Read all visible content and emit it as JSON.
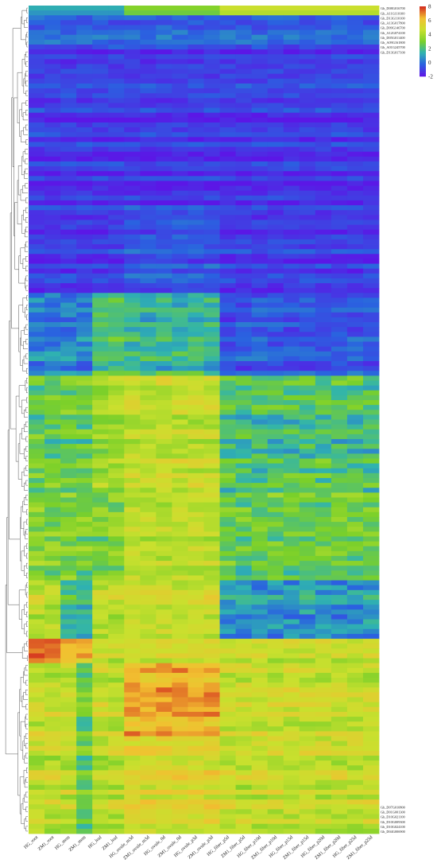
{
  "chart_data": {
    "type": "heatmap",
    "columns": [
      "HG_root",
      "ZM1_root",
      "HG_stem",
      "ZM1_stem",
      "HG_leaf",
      "ZM1_leaf",
      "HG_ovule_m3d",
      "ZM1_ovule_m3d",
      "HG_ovule_0d",
      "ZM1_ovule_0d",
      "HG_ovule_p3d",
      "ZM1_ovule_p3d",
      "HG_fiber_p5d",
      "ZM1_fiber_p5d",
      "HG_fiber_p10d",
      "ZM1_fiber_p10d",
      "HG_fiber_p15d",
      "ZM1_fiber_p15d",
      "HG_fiber_p20d",
      "ZM1_fiber_p20d",
      "HG_fiber_p25d",
      "ZM1_fiber_p25d"
    ],
    "rows_visible": [
      "Gh_D08G016700",
      "Gh_A11G110100",
      "Gh_D13G110100",
      "Gh_A13G017800",
      "Gh_D09G146700",
      "Gh_A12G074100",
      "Gh_D05G011400",
      "Gh_A09G161800",
      "Gh_A01G245700",
      "Gh_D13G017100"
    ],
    "rows_visible_bottom": [
      "Gh_D07G010800",
      "Gh_D01G001300",
      "Gh_D10G021100",
      "Gh_D10G009300",
      "Gh_D10G024100",
      "Gh_D04G006900"
    ],
    "row_count": 170,
    "color_scale": {
      "min": -2,
      "max": 8,
      "ticks": [
        8,
        6,
        4,
        2,
        0,
        -2
      ],
      "colors": [
        "#5b17e6",
        "#2a62e0",
        "#2fb3b0",
        "#7ad02a",
        "#c9e02e",
        "#f2c030",
        "#d43020"
      ]
    },
    "blocks": [
      {
        "rows": [
          0,
          8
        ],
        "pattern": "low-mixed"
      },
      {
        "rows": [
          9,
          58
        ],
        "pattern": "low"
      },
      {
        "rows": [
          59,
          75
        ],
        "pattern": "leaf-ovule-mid"
      },
      {
        "rows": [
          76,
          99
        ],
        "pattern": "ovule-high"
      },
      {
        "rows": [
          100,
          117
        ],
        "pattern": "mid-high"
      },
      {
        "rows": [
          118,
          129
        ],
        "pattern": "high-ovule-low-fiber"
      },
      {
        "rows": [
          130,
          134
        ],
        "pattern": "root-peak"
      },
      {
        "rows": [
          135,
          169
        ],
        "pattern": "all-high"
      }
    ]
  }
}
